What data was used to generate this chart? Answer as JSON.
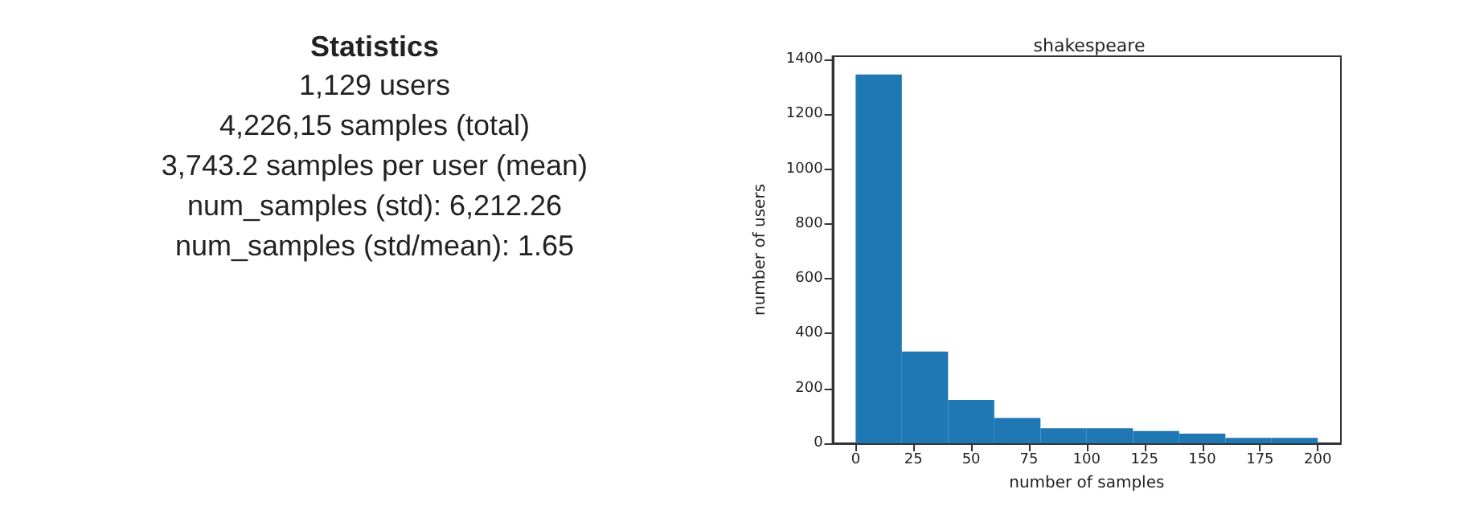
{
  "chart_data": [
    {
      "type": "other",
      "title": "Statistics",
      "annotations": [
        "1,129 users",
        "4,226,15 samples (total)",
        "3,743.2 samples per user (mean)",
        "num_samples (std): 6,212.26",
        "num_samples (std/mean): 1.65"
      ]
    },
    {
      "type": "histogram",
      "title": "shakespeare",
      "xlabel": "number of samples",
      "ylabel": "number of users",
      "bins": [
        0,
        20,
        40,
        60,
        80,
        100,
        120,
        140,
        160,
        180,
        200
      ],
      "values": [
        1345,
        335,
        158,
        92,
        55,
        55,
        45,
        35,
        20,
        20
      ],
      "color": "#1f77b4",
      "xlim": [
        -10,
        210
      ],
      "xticks": [
        0,
        25,
        50,
        75,
        100,
        125,
        150,
        175,
        200
      ],
      "ylim": [
        0,
        1412
      ],
      "yticks": [
        0,
        200,
        400,
        600,
        800,
        1000,
        1200,
        1400
      ],
      "grid": false
    }
  ]
}
